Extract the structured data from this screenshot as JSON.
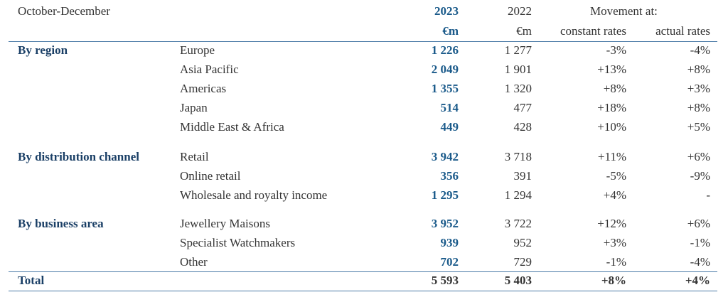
{
  "header": {
    "period": "October-December",
    "year_current": "2023",
    "year_prior": "2022",
    "movement_title": "Movement at:",
    "unit_current": "€m",
    "unit_prior": "€m",
    "col_constant": "constant rates",
    "col_actual": "actual rates"
  },
  "sections": [
    {
      "title": "By region",
      "rows": [
        {
          "label": "Europe",
          "current": "1 226",
          "prior": "1 277",
          "constant": "-3%",
          "actual": "-4%"
        },
        {
          "label": "Asia Pacific",
          "current": "2 049",
          "prior": "1 901",
          "constant": "+13%",
          "actual": "+8%"
        },
        {
          "label": "Americas",
          "current": "1 355",
          "prior": "1 320",
          "constant": "+8%",
          "actual": "+3%"
        },
        {
          "label": "Japan",
          "current": "514",
          "prior": "477",
          "constant": "+18%",
          "actual": "+8%"
        },
        {
          "label": "Middle East & Africa",
          "current": "449",
          "prior": "428",
          "constant": "+10%",
          "actual": "+5%"
        }
      ]
    },
    {
      "title": "By distribution channel",
      "rows": [
        {
          "label": "Retail",
          "current": "3 942",
          "prior": "3 718",
          "constant": "+11%",
          "actual": "+6%"
        },
        {
          "label": "Online retail",
          "current": "356",
          "prior": "391",
          "constant": "-5%",
          "actual": "-9%"
        },
        {
          "label": "Wholesale and royalty income",
          "current": "1 295",
          "prior": "1 294",
          "constant": "+4%",
          "actual": "-"
        }
      ]
    },
    {
      "title": "By business area",
      "rows": [
        {
          "label": "Jewellery Maisons",
          "current": "3 952",
          "prior": "3 722",
          "constant": "+12%",
          "actual": "+6%"
        },
        {
          "label": "Specialist Watchmakers",
          "current": "939",
          "prior": "952",
          "constant": "+3%",
          "actual": "-1%"
        },
        {
          "label": "Other",
          "current": "702",
          "prior": "729",
          "constant": "-1%",
          "actual": "-4%"
        }
      ]
    }
  ],
  "total": {
    "label": "Total",
    "current": "5 593",
    "prior": "5 403",
    "constant": "+8%",
    "actual": "+4%"
  },
  "colors": {
    "accent": "#1a5a8a",
    "title": "#1a3f66",
    "rule": "#4a7aa6",
    "text": "#333333"
  }
}
